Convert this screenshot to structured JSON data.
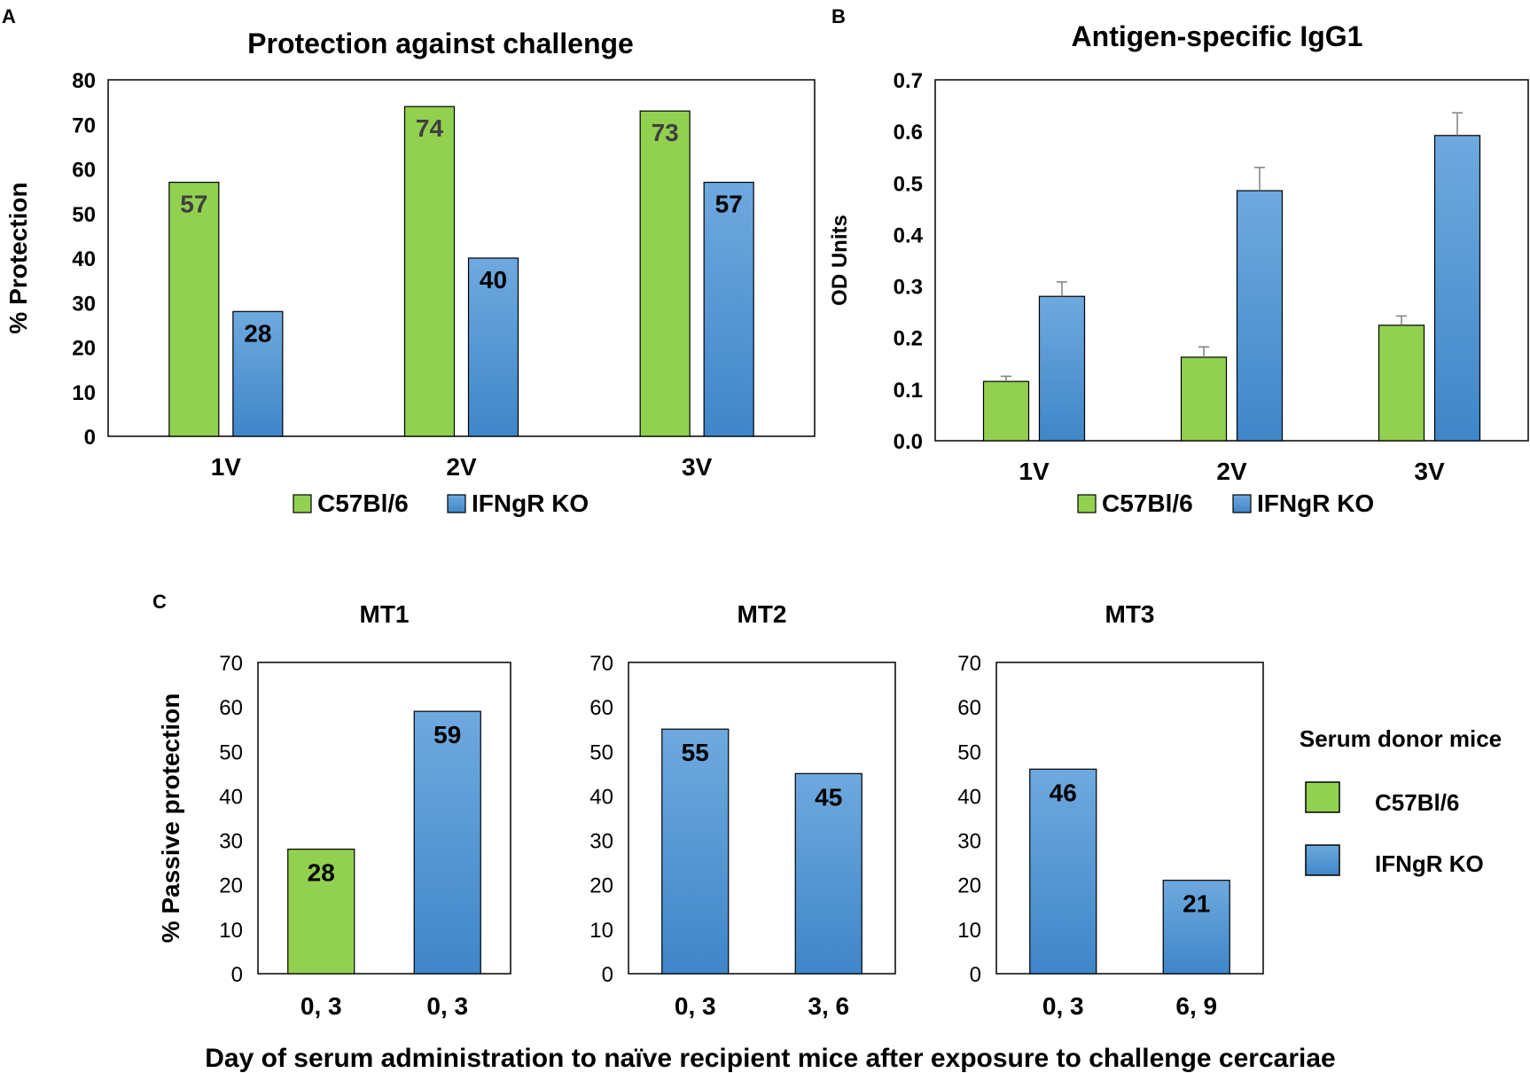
{
  "colors": {
    "green": "#92d050",
    "blue": "#5b9bd5",
    "blue_top": "#6ea9de",
    "blue_bottom": "#3f86c9",
    "edge": "#000000",
    "text": "#000000",
    "label_on_green": "#3f3f3f",
    "error_bar": "#7f7f7f"
  },
  "panel_letters": {
    "a": "A",
    "b": "B",
    "c": "C"
  },
  "chart_data": [
    {
      "id": "A",
      "type": "bar",
      "title": "Protection against challenge",
      "xlabel": "",
      "ylabel": "% Protection",
      "categories": [
        "1V",
        "2V",
        "3V"
      ],
      "series": [
        {
          "name": "C57Bl/6",
          "color": "green",
          "values": [
            57,
            74,
            73
          ],
          "labels": [
            "57",
            "74",
            "73"
          ]
        },
        {
          "name": "IFNgR KO",
          "color": "blue",
          "values": [
            28,
            40,
            57
          ],
          "labels": [
            "28",
            "40",
            "57"
          ]
        }
      ],
      "ylim": [
        0,
        80
      ],
      "yticks": [
        "0",
        "10",
        "20",
        "30",
        "40",
        "50",
        "60",
        "70",
        "80"
      ],
      "grid": false,
      "legend": "bottom-center"
    },
    {
      "id": "B",
      "type": "bar",
      "title": "Antigen-specific IgG1",
      "xlabel": "",
      "ylabel": "OD Units",
      "categories": [
        "1V",
        "2V",
        "3V"
      ],
      "series": [
        {
          "name": "C57Bl/6",
          "color": "green",
          "values": [
            0.115,
            0.162,
            0.224
          ],
          "errors": [
            0.01,
            0.02,
            0.018
          ]
        },
        {
          "name": "IFNgR KO",
          "color": "blue",
          "values": [
            0.28,
            0.485,
            0.592
          ],
          "errors": [
            0.028,
            0.045,
            0.044
          ]
        }
      ],
      "ylim": [
        0,
        0.7
      ],
      "yticks": [
        "0.0",
        "0.1",
        "0.2",
        "0.3",
        "0.4",
        "0.5",
        "0.6",
        "0.7"
      ],
      "grid": false,
      "legend": "bottom-center"
    },
    {
      "id": "C-MT1",
      "type": "bar",
      "title": "MT1",
      "ylabel": "% Passive protection",
      "categories": [
        "0, 3",
        "0, 3"
      ],
      "values": [
        28,
        59
      ],
      "labels": [
        "28",
        "59"
      ],
      "bar_colors": [
        "green",
        "blue"
      ],
      "ylim": [
        0,
        70
      ],
      "yticks": [
        "0",
        "10",
        "20",
        "30",
        "40",
        "50",
        "60",
        "70"
      ]
    },
    {
      "id": "C-MT2",
      "type": "bar",
      "title": "MT2",
      "ylabel": "",
      "categories": [
        "0, 3",
        "3, 6"
      ],
      "values": [
        55,
        45
      ],
      "labels": [
        "55",
        "45"
      ],
      "bar_colors": [
        "blue",
        "blue"
      ],
      "ylim": [
        0,
        70
      ],
      "yticks": [
        "0",
        "10",
        "20",
        "30",
        "40",
        "50",
        "60",
        "70"
      ]
    },
    {
      "id": "C-MT3",
      "type": "bar",
      "title": "MT3",
      "ylabel": "",
      "categories": [
        "0, 3",
        "6, 9"
      ],
      "values": [
        46,
        21
      ],
      "labels": [
        "46",
        "21"
      ],
      "bar_colors": [
        "blue",
        "blue"
      ],
      "ylim": [
        0,
        70
      ],
      "yticks": [
        "0",
        "10",
        "20",
        "30",
        "40",
        "50",
        "60",
        "70"
      ]
    }
  ],
  "panel_c": {
    "xlabel": "Day of serum administration to naïve recipient mice after exposure to challenge cercariae",
    "legend": {
      "title": "Serum donor mice",
      "items": [
        {
          "name": "C57Bl/6",
          "color": "green"
        },
        {
          "name": "IFNgR KO",
          "color": "blue"
        }
      ]
    }
  }
}
